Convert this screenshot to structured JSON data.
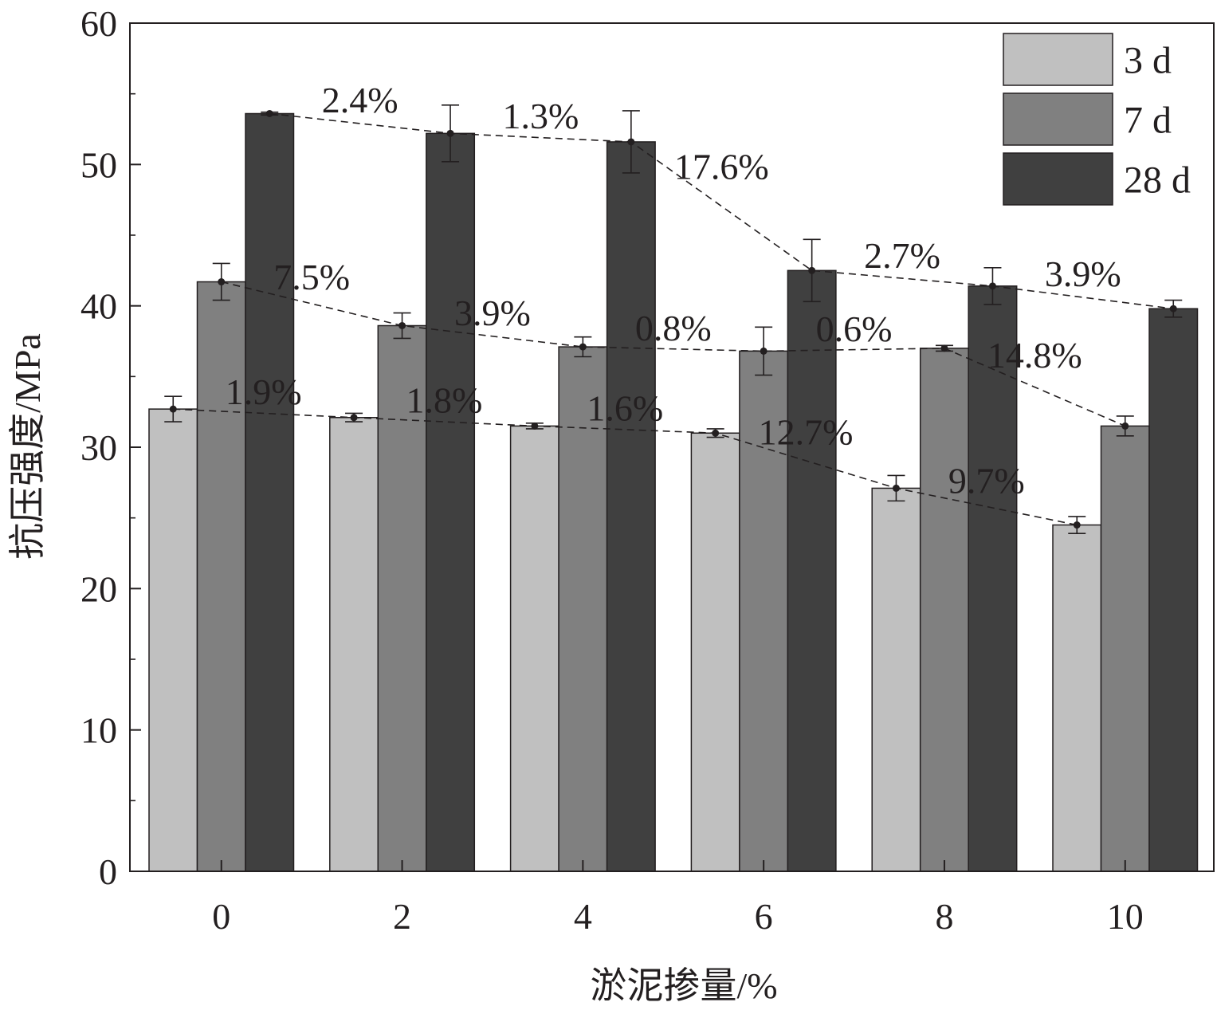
{
  "chart_data": {
    "type": "bar",
    "xlabel": "淤泥掺量/%",
    "ylabel": "抗压强度/MPa",
    "ylim": [
      0,
      60
    ],
    "yticks": [
      0,
      10,
      20,
      30,
      40,
      50,
      60
    ],
    "categories": [
      "0",
      "2",
      "4",
      "6",
      "8",
      "10"
    ],
    "legend_position": "top-right",
    "grid": false,
    "series": [
      {
        "name": "3 d",
        "color": "#c0c0c0",
        "values": [
          32.7,
          32.1,
          31.5,
          31.0,
          27.1,
          24.5
        ],
        "errors": [
          0.9,
          0.3,
          0.2,
          0.3,
          0.9,
          0.6
        ],
        "change_labels": [
          "1.9%",
          "1.8%",
          "1.6%",
          "12.7%",
          "9.7%"
        ]
      },
      {
        "name": "7 d",
        "color": "#808080",
        "values": [
          41.7,
          38.6,
          37.1,
          36.8,
          37.0,
          31.5
        ],
        "errors": [
          1.3,
          0.9,
          0.7,
          1.7,
          0.2,
          0.7
        ],
        "change_labels": [
          "7.5%",
          "3.9%",
          "0.8%",
          "0.6%",
          "14.8%"
        ]
      },
      {
        "name": "28 d",
        "color": "#404040",
        "values": [
          53.6,
          52.2,
          51.6,
          42.5,
          41.4,
          39.8
        ],
        "errors": [
          0.1,
          2.0,
          2.2,
          2.2,
          1.3,
          0.6
        ],
        "change_labels": [
          "2.4%",
          "1.3%",
          "17.6%",
          "2.7%",
          "3.9%"
        ]
      }
    ]
  }
}
